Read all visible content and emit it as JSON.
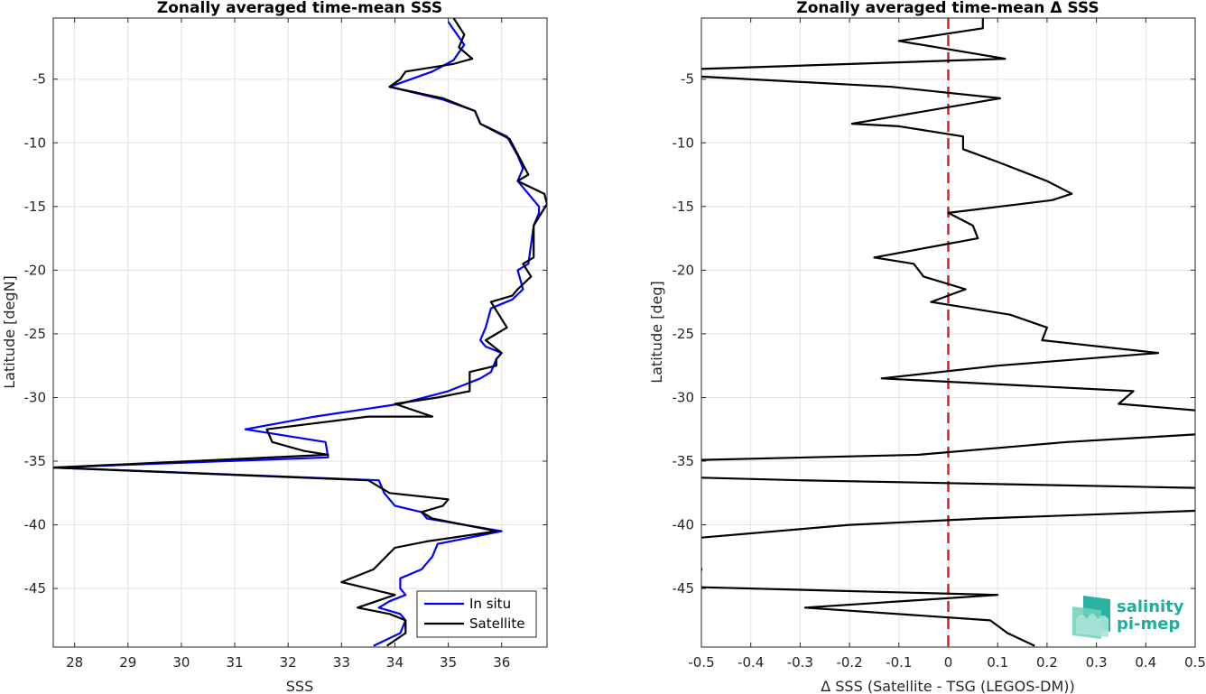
{
  "chart_data": [
    {
      "type": "line",
      "title": "Zonally averaged time-mean SSS",
      "xlabel": "SSS",
      "ylabel": "Latitude [degN]",
      "xlim": [
        27.6,
        36.85
      ],
      "ylim": [
        -49.6,
        -0.2
      ],
      "xticks": [
        28,
        29,
        30,
        31,
        32,
        33,
        34,
        35,
        36
      ],
      "yticks": [
        -5,
        -10,
        -15,
        -20,
        -25,
        -30,
        -35,
        -40,
        -45
      ],
      "grid": true,
      "legend_position": "bottom-right",
      "series": [
        {
          "name": "In situ",
          "color": "#0000ff",
          "points": [
            [
              35.0,
              -0.5
            ],
            [
              35.3,
              -2.3
            ],
            [
              35.1,
              -3.5
            ],
            [
              34.7,
              -4.4
            ],
            [
              33.9,
              -5.6
            ],
            [
              34.9,
              -6.6
            ],
            [
              35.5,
              -7.5
            ],
            [
              35.6,
              -8.5
            ],
            [
              36.1,
              -9.5
            ],
            [
              36.3,
              -11.0
            ],
            [
              36.4,
              -12.0
            ],
            [
              36.3,
              -13.0
            ],
            [
              36.5,
              -14.0
            ],
            [
              36.7,
              -15.0
            ],
            [
              36.7,
              -15.5
            ],
            [
              36.6,
              -16.5
            ],
            [
              36.55,
              -18.0
            ],
            [
              36.5,
              -19.5
            ],
            [
              36.3,
              -20.0
            ],
            [
              36.4,
              -21.5
            ],
            [
              36.2,
              -22.3
            ],
            [
              35.8,
              -23.0
            ],
            [
              35.7,
              -24.5
            ],
            [
              35.6,
              -25.5
            ],
            [
              35.7,
              -26.0
            ],
            [
              36.0,
              -26.5
            ],
            [
              35.9,
              -27.0
            ],
            [
              35.8,
              -28.0
            ],
            [
              35.6,
              -28.5
            ],
            [
              35.0,
              -29.5
            ],
            [
              34.1,
              -30.5
            ],
            [
              32.5,
              -31.5
            ],
            [
              31.2,
              -32.5
            ],
            [
              32.7,
              -33.5
            ],
            [
              32.75,
              -34.7
            ],
            [
              27.6,
              -35.5
            ],
            [
              33.7,
              -36.5
            ],
            [
              33.8,
              -37.5
            ],
            [
              34.0,
              -38.5
            ],
            [
              34.5,
              -39.0
            ],
            [
              34.6,
              -39.5
            ],
            [
              36.0,
              -40.5
            ],
            [
              34.8,
              -41.5
            ],
            [
              34.7,
              -42.5
            ],
            [
              34.5,
              -43.5
            ],
            [
              34.1,
              -44.2
            ],
            [
              34.1,
              -45.0
            ],
            [
              34.2,
              -45.5
            ],
            [
              33.9,
              -46.0
            ],
            [
              33.7,
              -46.5
            ],
            [
              34.1,
              -47.0
            ],
            [
              34.2,
              -47.5
            ],
            [
              34.1,
              -48.5
            ],
            [
              33.6,
              -49.5
            ]
          ]
        },
        {
          "name": "Satellite",
          "color": "#000000",
          "points": [
            [
              35.1,
              -0.2
            ],
            [
              35.3,
              -1.5
            ],
            [
              35.2,
              -2.5
            ],
            [
              35.45,
              -3.4
            ],
            [
              35.1,
              -3.8
            ],
            [
              34.2,
              -4.4
            ],
            [
              34.1,
              -5.0
            ],
            [
              33.9,
              -5.6
            ],
            [
              34.9,
              -6.5
            ],
            [
              35.5,
              -7.5
            ],
            [
              35.6,
              -8.5
            ],
            [
              36.15,
              -9.7
            ],
            [
              36.25,
              -10.5
            ],
            [
              36.5,
              -12.5
            ],
            [
              36.3,
              -13.0
            ],
            [
              36.8,
              -14.0
            ],
            [
              36.85,
              -14.8
            ],
            [
              36.6,
              -16.5
            ],
            [
              36.6,
              -18.0
            ],
            [
              36.6,
              -19.0
            ],
            [
              36.4,
              -19.5
            ],
            [
              36.55,
              -20.5
            ],
            [
              36.3,
              -21.5
            ],
            [
              36.2,
              -22.0
            ],
            [
              35.8,
              -22.5
            ],
            [
              36.1,
              -24.5
            ],
            [
              35.7,
              -25.5
            ],
            [
              36.0,
              -26.5
            ],
            [
              35.9,
              -27.0
            ],
            [
              35.9,
              -27.5
            ],
            [
              35.4,
              -28.0
            ],
            [
              35.4,
              -29.5
            ],
            [
              34.8,
              -30.0
            ],
            [
              34.0,
              -30.5
            ],
            [
              34.7,
              -31.5
            ],
            [
              33.5,
              -31.5
            ],
            [
              31.6,
              -32.5
            ],
            [
              31.7,
              -33.5
            ],
            [
              32.3,
              -34.2
            ],
            [
              32.75,
              -34.5
            ],
            [
              27.6,
              -35.5
            ],
            [
              33.5,
              -36.5
            ],
            [
              33.9,
              -37.5
            ],
            [
              35.0,
              -38.0
            ],
            [
              34.9,
              -38.5
            ],
            [
              34.5,
              -39.0
            ],
            [
              34.7,
              -39.5
            ],
            [
              35.9,
              -40.5
            ],
            [
              34.6,
              -41.3
            ],
            [
              34.0,
              -41.8
            ],
            [
              33.6,
              -43.5
            ],
            [
              33.0,
              -44.5
            ],
            [
              34.0,
              -45.5
            ],
            [
              33.3,
              -46.5
            ],
            [
              33.9,
              -47.0
            ],
            [
              34.2,
              -47.5
            ],
            [
              34.2,
              -48.5
            ],
            [
              33.85,
              -49.5
            ]
          ]
        }
      ]
    },
    {
      "type": "line",
      "title": "Zonally averaged time-mean Δ SSS",
      "xlabel": "Δ SSS (Satellite - TSG (LEGOS-DM))",
      "ylabel": "Latitude [deg]",
      "xlim": [
        -0.5,
        0.5
      ],
      "ylim": [
        -49.6,
        -0.2
      ],
      "xticks": [
        -0.5,
        -0.4,
        -0.3,
        -0.2,
        -0.1,
        0,
        0.1,
        0.2,
        0.3,
        0.4,
        0.5
      ],
      "yticks": [
        -5,
        -10,
        -15,
        -20,
        -25,
        -30,
        -35,
        -40,
        -45
      ],
      "grid": true,
      "reference_line": {
        "x": 0,
        "color": "#e41a1c",
        "style": "dashed"
      },
      "series": [
        {
          "color": "#000000",
          "points": [
            [
              0.07,
              -0.2
            ],
            [
              0.07,
              -1.0
            ],
            [
              -0.1,
              -2.0
            ],
            [
              0.115,
              -3.4
            ],
            [
              -0.5,
              -4.2
            ]
          ]
        },
        {
          "color": "#000000",
          "points": [
            [
              -0.5,
              -4.8
            ],
            [
              -0.115,
              -5.6
            ],
            [
              0.105,
              -6.5
            ],
            [
              -0.195,
              -8.5
            ],
            [
              -0.1,
              -8.7
            ],
            [
              0.03,
              -9.5
            ],
            [
              0.03,
              -10.5
            ],
            [
              0.1,
              -11.5
            ],
            [
              0.2,
              -13.0
            ],
            [
              0.25,
              -14.0
            ],
            [
              0.21,
              -14.5
            ],
            [
              0.0,
              -15.5
            ],
            [
              0.05,
              -16.5
            ],
            [
              0.06,
              -17.5
            ],
            [
              -0.15,
              -19.0
            ],
            [
              -0.07,
              -19.5
            ],
            [
              -0.05,
              -20.5
            ],
            [
              0.035,
              -21.5
            ],
            [
              -0.035,
              -22.5
            ],
            [
              0.125,
              -23.5
            ],
            [
              0.2,
              -24.5
            ],
            [
              0.19,
              -25.5
            ],
            [
              0.425,
              -26.5
            ],
            [
              0.1,
              -27.5
            ],
            [
              -0.135,
              -28.5
            ],
            [
              0.375,
              -29.5
            ],
            [
              0.345,
              -30.5
            ],
            [
              0.5,
              -31.0
            ]
          ]
        },
        {
          "color": "#000000",
          "points": [
            [
              0.5,
              -32.9
            ],
            [
              0.24,
              -33.5
            ],
            [
              -0.06,
              -34.5
            ],
            [
              -0.5,
              -34.9
            ]
          ]
        },
        {
          "color": "#000000",
          "points": [
            [
              -0.5,
              -36.3
            ],
            [
              -0.3,
              -36.5
            ],
            [
              0.5,
              -37.1
            ]
          ]
        },
        {
          "color": "#000000",
          "points": [
            [
              0.5,
              -38.9
            ],
            [
              0.07,
              -39.5
            ],
            [
              -0.2,
              -40.0
            ],
            [
              -0.5,
              -41.0
            ]
          ]
        },
        {
          "color": "#000000",
          "points": [
            [
              -0.5,
              -43.4
            ],
            [
              -0.5,
              -43.6
            ]
          ]
        },
        {
          "color": "#000000",
          "points": [
            [
              -0.5,
              -44.9
            ],
            [
              0.1,
              -45.5
            ],
            [
              -0.29,
              -46.5
            ],
            [
              0.085,
              -47.5
            ],
            [
              0.12,
              -48.5
            ],
            [
              0.175,
              -49.5
            ]
          ]
        }
      ]
    }
  ],
  "logo": {
    "line1": "salinity",
    "line2": "pi-mep",
    "color": "#1fae9b"
  }
}
